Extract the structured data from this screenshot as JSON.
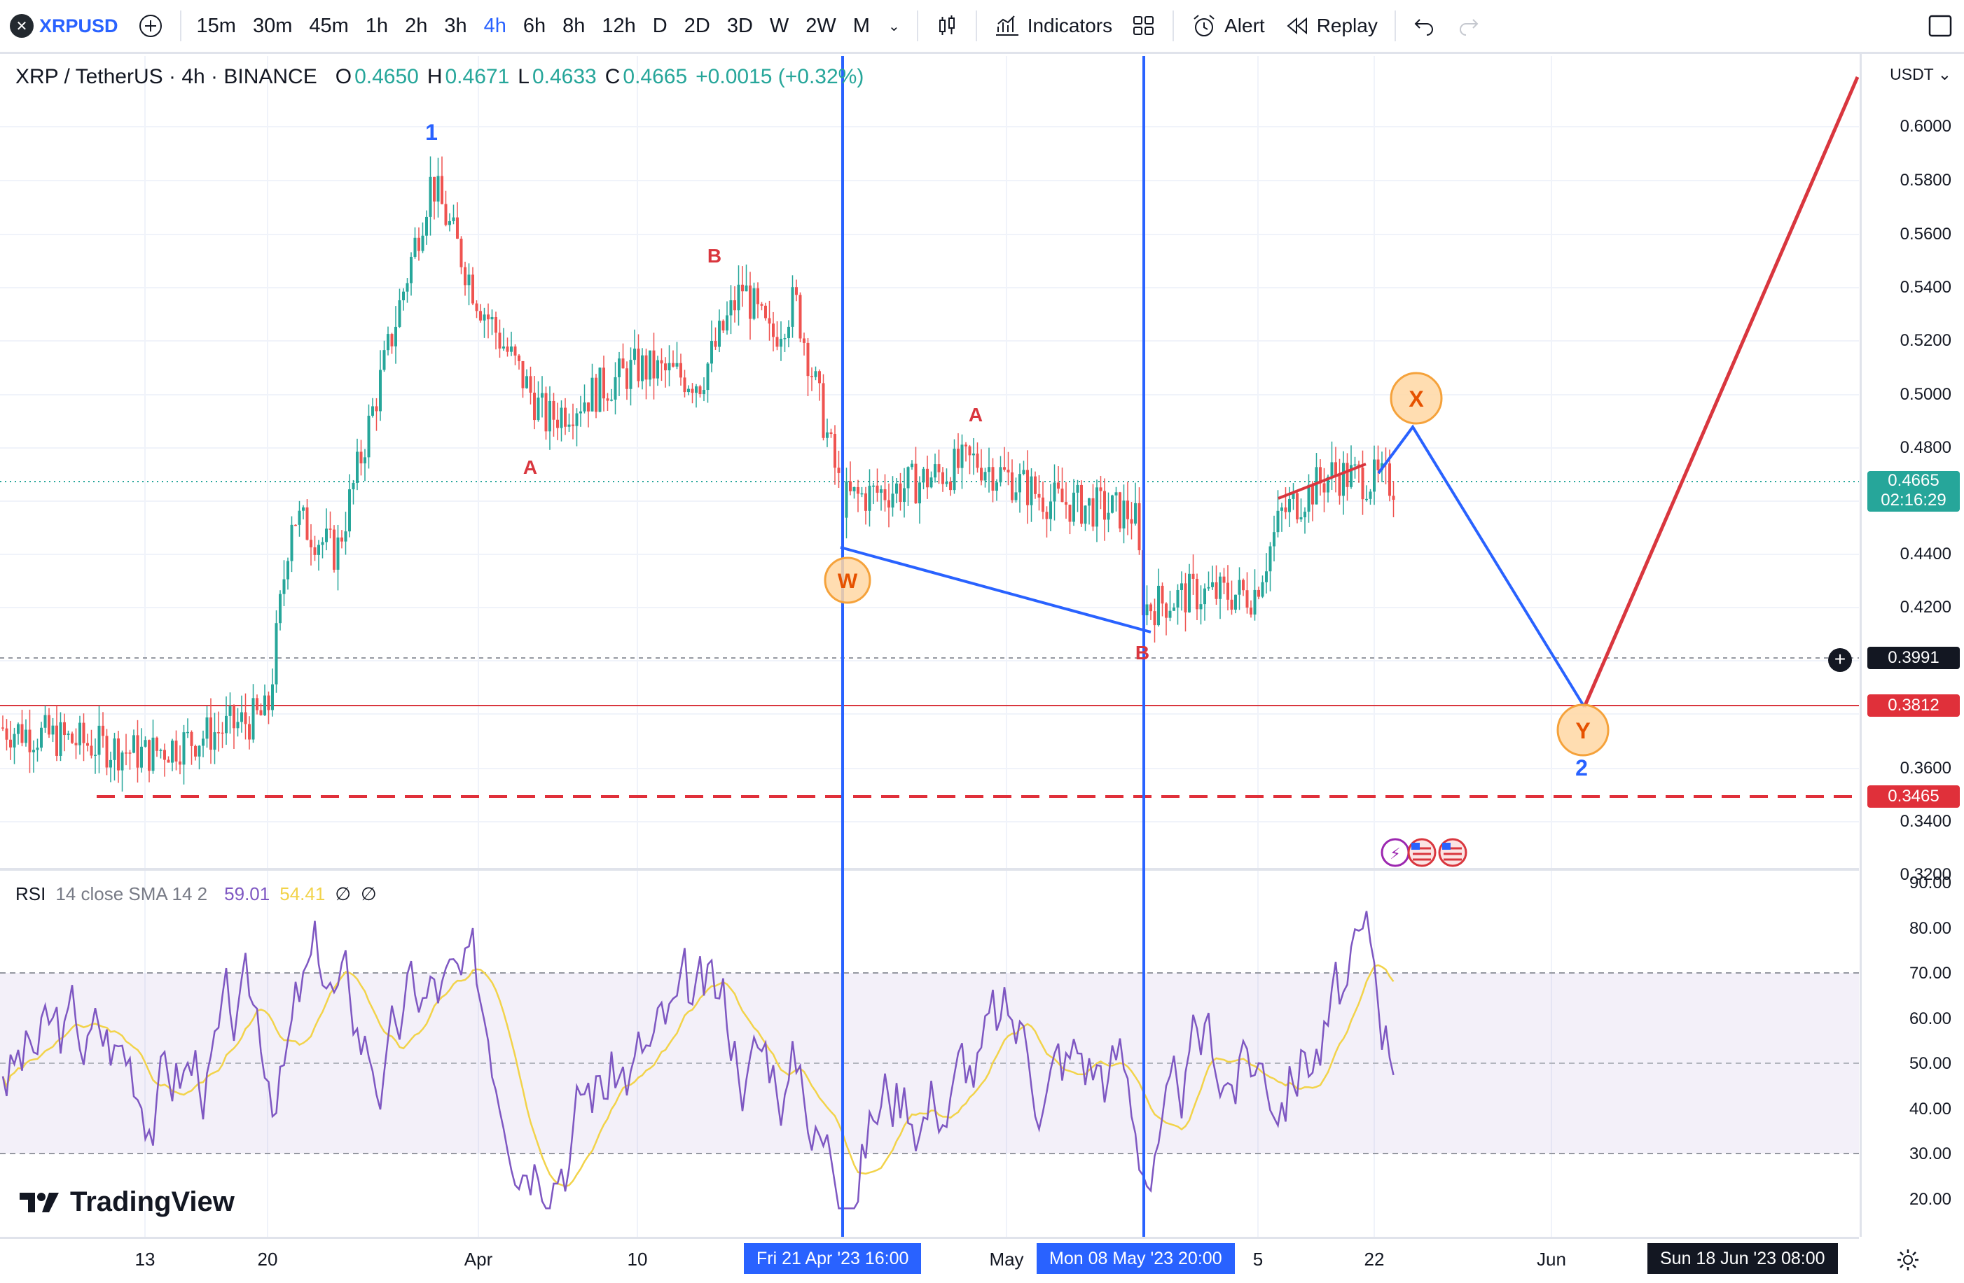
{
  "toolbar": {
    "symbol": "XRPUSD",
    "timeframes": [
      "15m",
      "30m",
      "45m",
      "1h",
      "2h",
      "3h",
      "4h",
      "6h",
      "8h",
      "12h",
      "D",
      "2D",
      "3D",
      "W",
      "2W",
      "M"
    ],
    "active_timeframe": "4h",
    "indicators_label": "Indicators",
    "alert_label": "Alert",
    "replay_label": "Replay"
  },
  "legend": {
    "title": "XRP / TetherUS · 4h · BINANCE",
    "open_k": "O",
    "open": "0.4650",
    "high_k": "H",
    "high": "0.4671",
    "low_k": "L",
    "low": "0.4633",
    "close_k": "C",
    "close": "0.4665",
    "change": "+0.0015 (+0.32%)"
  },
  "rsi": {
    "label": "RSI",
    "params": "14 close SMA 14 2",
    "value": "59.01",
    "ma_value": "54.41",
    "extra1": "∅",
    "extra2": "∅",
    "axis": [
      "90.00",
      "80.00",
      "70.00",
      "60.00",
      "50.00",
      "40.00",
      "30.00",
      "20.00"
    ]
  },
  "price_axis": {
    "currency": "USDT",
    "labels": [
      "0.6000",
      "0.5800",
      "0.5600",
      "0.5400",
      "0.5200",
      "0.5000",
      "0.4800",
      "0.4400",
      "0.4200",
      "0.3600",
      "0.3400",
      "0.3200"
    ],
    "current_price": "0.4665",
    "countdown": "02:16:29",
    "crosshair_price": "0.3991",
    "level_red": "0.3812",
    "level_dashed": "0.3465"
  },
  "time_axis": {
    "labels": [
      "13",
      "20",
      "Apr",
      "10",
      "May",
      "5",
      "22",
      "Jun"
    ],
    "crosshair_1": "Fri 21 Apr '23   16:00",
    "crosshair_2": "Mon 08 May '23   20:00",
    "end_date": "Sun 18 Jun '23   08:00"
  },
  "annotations": {
    "wave_1": "1",
    "wave_2": "2",
    "a1": "A",
    "b1": "B",
    "a2": "A",
    "b2": "B",
    "w": "W",
    "x": "X",
    "y": "Y"
  },
  "brand": "TradingView",
  "colors": {
    "accent": "#2962ff",
    "up": "#26a69a",
    "down": "#ef5350",
    "rsi_line": "#7e57c2",
    "rsi_ma": "#f2d34a",
    "wave_blue": "#2962ff",
    "wave_red": "#d9363e",
    "circle_fill": "#ffd7a3",
    "circle_stroke": "#f5a23b"
  },
  "chart_data": {
    "type": "candlestick",
    "title": "XRP / TetherUS · 4h · BINANCE",
    "ylim": [
      0.32,
      0.61
    ],
    "approx_path": [
      {
        "x": "Mar 8",
        "y": 0.375
      },
      {
        "x": "Mar 13",
        "y": 0.365
      },
      {
        "x": "Mar 16",
        "y": 0.37
      },
      {
        "x": "Mar 20",
        "y": 0.38
      },
      {
        "x": "Mar 21",
        "y": 0.455
      },
      {
        "x": "Mar 24",
        "y": 0.44
      },
      {
        "x": "Mar 29",
        "y": 0.58
      },
      {
        "x": "Apr 1",
        "y": 0.535
      },
      {
        "x": "Apr 4",
        "y": 0.49
      },
      {
        "x": "Apr 8",
        "y": 0.51
      },
      {
        "x": "Apr 12",
        "y": 0.505
      },
      {
        "x": "Apr 15",
        "y": 0.54
      },
      {
        "x": "Apr 18",
        "y": 0.52
      },
      {
        "x": "Apr 20",
        "y": 0.535
      },
      {
        "x": "Apr 21",
        "y": 0.46
      },
      {
        "x": "Apr 25",
        "y": 0.465
      },
      {
        "x": "Apr 29",
        "y": 0.475
      },
      {
        "x": "May 3",
        "y": 0.46
      },
      {
        "x": "May 8",
        "y": 0.455
      },
      {
        "x": "May 9",
        "y": 0.42
      },
      {
        "x": "May 12",
        "y": 0.425
      },
      {
        "x": "May 16",
        "y": 0.425
      },
      {
        "x": "May 18",
        "y": 0.455
      },
      {
        "x": "May 20",
        "y": 0.47
      },
      {
        "x": "May 22",
        "y": 0.4665
      }
    ],
    "projection": [
      {
        "label": "X",
        "y": 0.486
      },
      {
        "label": "Y",
        "y": 0.381
      },
      {
        "label": "target",
        "y": 0.61
      }
    ],
    "levels": [
      0.3991,
      0.3812,
      0.3465
    ]
  }
}
